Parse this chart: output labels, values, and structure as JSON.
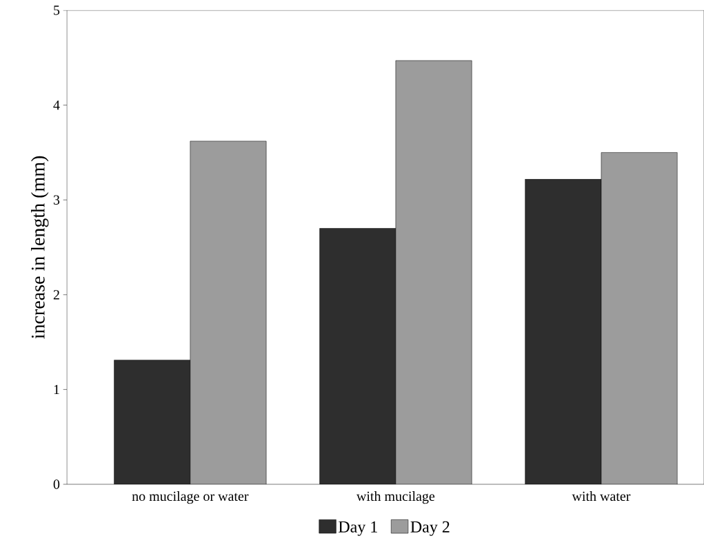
{
  "chart_data": {
    "type": "bar",
    "ylabel": "increase in length (mm)",
    "categories": [
      "no mucilage or water",
      "with mucilage",
      "with water"
    ],
    "series": [
      {
        "name": "Day 1",
        "color": "#2e2e2e",
        "values": [
          1.31,
          2.7,
          3.22
        ]
      },
      {
        "name": "Day 2",
        "color": "#9c9c9c",
        "values": [
          3.62,
          4.47,
          3.5
        ]
      }
    ],
    "ylim": [
      0,
      5
    ],
    "yticks": [
      0,
      1,
      2,
      3,
      4,
      5
    ],
    "grid": false,
    "legend": "bottom"
  }
}
